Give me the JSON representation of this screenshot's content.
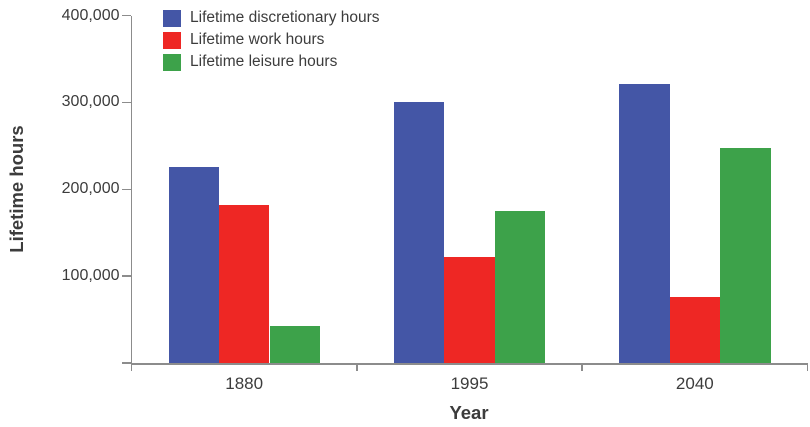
{
  "figure": {
    "background_color": "#ffffff",
    "text_color": "#3c3c3c",
    "axis_line_color": "#8c8c8c"
  },
  "chart_data": {
    "type": "bar",
    "title": "",
    "xlabel": "Year",
    "ylabel": "Lifetime hours",
    "categories": [
      "1880",
      "1995",
      "2040"
    ],
    "series": [
      {
        "name": "Lifetime discretionary hours",
        "color": "#4456a6",
        "values": [
          226000,
          300000,
          321000
        ]
      },
      {
        "name": "Lifetime work hours",
        "color": "#ee2724",
        "values": [
          182000,
          122000,
          76000
        ]
      },
      {
        "name": "Lifetime leisure hours",
        "color": "#3da24a",
        "values": [
          43000,
          175000,
          247000
        ]
      }
    ],
    "ylim": [
      0,
      400000
    ],
    "yticks": [
      0,
      100000,
      200000,
      300000,
      400000
    ],
    "ytick_labels": [
      "",
      "100,000",
      "200,000",
      "300,000",
      "400,000"
    ],
    "legend_position": "top-left-inside",
    "grid": false
  }
}
